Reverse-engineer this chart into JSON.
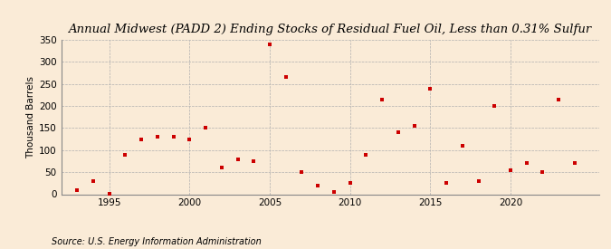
{
  "title": "Annual Midwest (PADD 2) Ending Stocks of Residual Fuel Oil, Less than 0.31% Sulfur",
  "ylabel": "Thousand Barrels",
  "source": "Source: U.S. Energy Information Administration",
  "background_color": "#faebd7",
  "marker_color": "#cc0000",
  "years": [
    1993,
    1994,
    1995,
    1996,
    1997,
    1998,
    1999,
    2000,
    2001,
    2002,
    2003,
    2004,
    2005,
    2006,
    2007,
    2008,
    2009,
    2010,
    2011,
    2012,
    2013,
    2014,
    2015,
    2016,
    2017,
    2018,
    2019,
    2020,
    2021,
    2022,
    2023,
    2024
  ],
  "values": [
    10,
    30,
    2,
    90,
    125,
    130,
    130,
    125,
    150,
    60,
    80,
    75,
    340,
    265,
    50,
    20,
    5,
    25,
    90,
    215,
    140,
    155,
    240,
    25,
    110,
    30,
    200,
    55,
    70,
    50,
    215,
    70
  ],
  "xlim": [
    1992,
    2025.5
  ],
  "ylim": [
    0,
    350
  ],
  "yticks": [
    0,
    50,
    100,
    150,
    200,
    250,
    300,
    350
  ],
  "xticks": [
    1995,
    2000,
    2005,
    2010,
    2015,
    2020
  ],
  "grid_color": "#b0b0b0",
  "title_fontsize": 9.5,
  "label_fontsize": 7.5,
  "tick_fontsize": 7.5,
  "source_fontsize": 7
}
